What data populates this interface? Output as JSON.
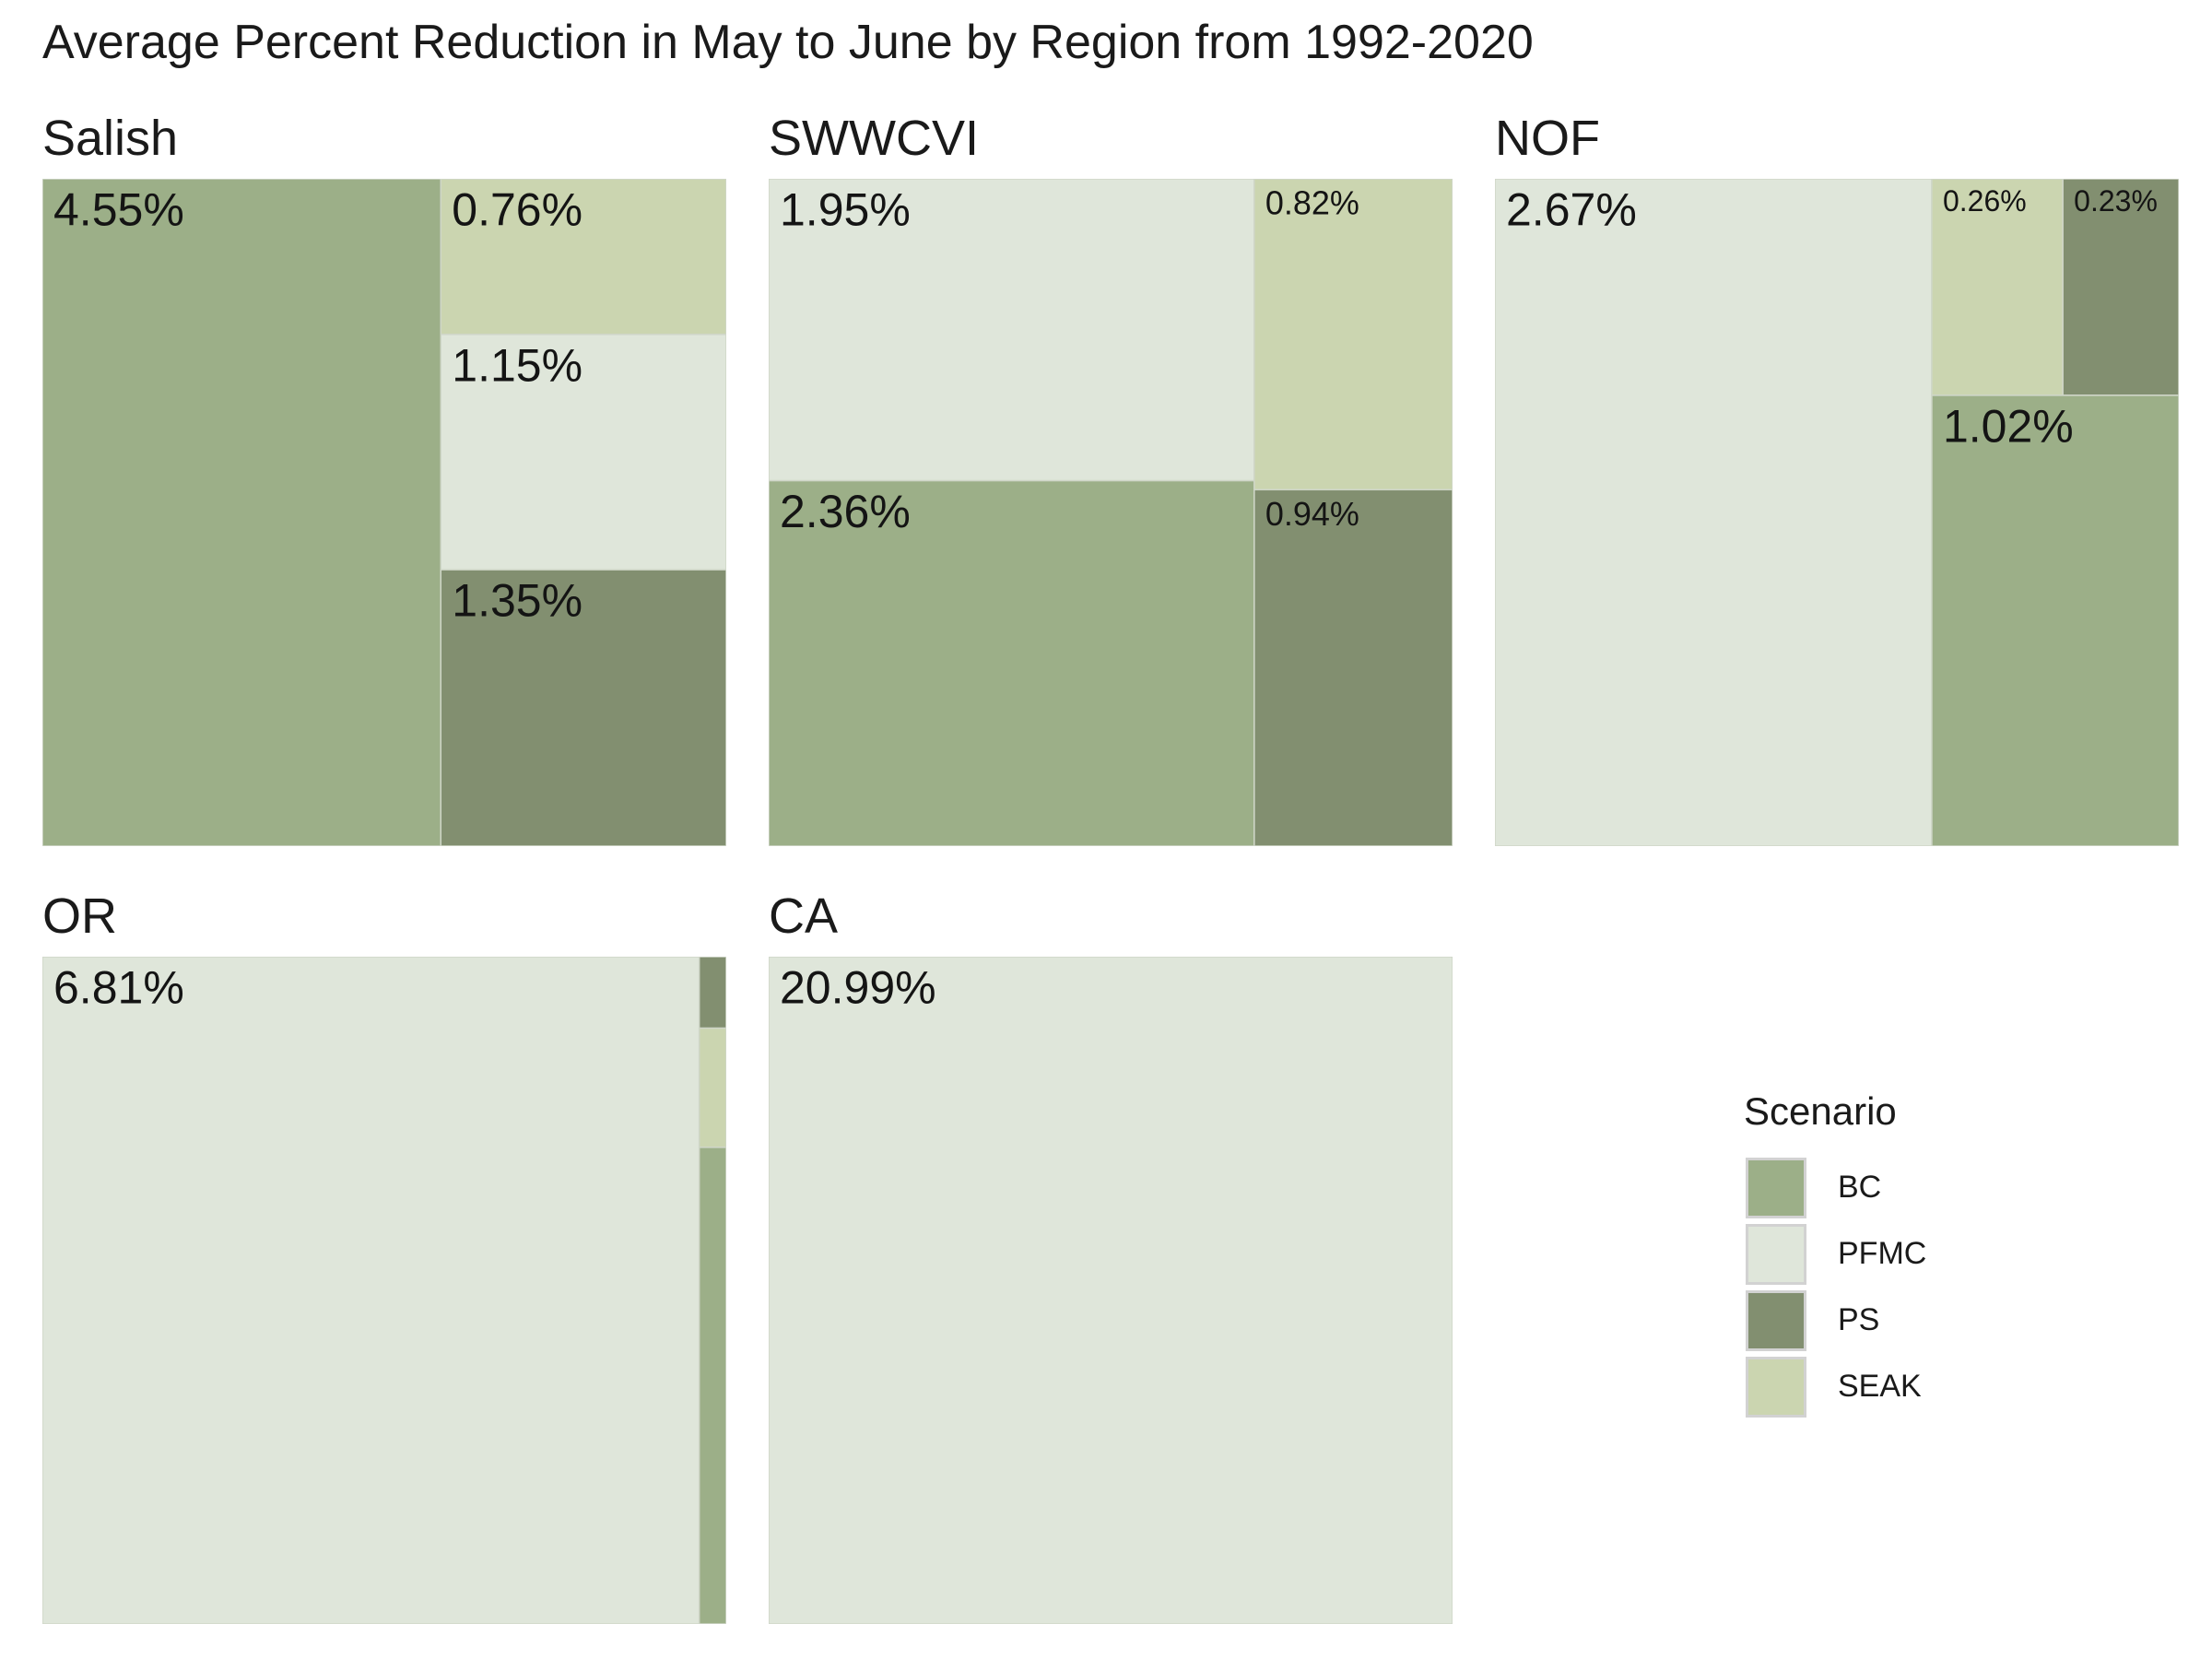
{
  "title": "Average Percent Reduction in May to June by Region from 1992-2020",
  "scenario_colors": {
    "BC": "#9caf88",
    "PFMC": "#dfe6da",
    "PS": "#828f70",
    "SEAK": "#cbd5b0"
  },
  "legend": {
    "title": "Scenario",
    "items": [
      "BC",
      "PFMC",
      "PS",
      "SEAK"
    ]
  },
  "chart_data": {
    "type": "treemap",
    "title": "Average Percent Reduction in May to June by Region from 1992-2020",
    "legend_position": "bottom-right",
    "panels": [
      {
        "region": "Salish",
        "tiles": [
          {
            "scenario": "BC",
            "value": 4.55,
            "label": "4.55%"
          },
          {
            "scenario": "SEAK",
            "value": 0.76,
            "label": "0.76%"
          },
          {
            "scenario": "PFMC",
            "value": 1.15,
            "label": "1.15%"
          },
          {
            "scenario": "PS",
            "value": 1.35,
            "label": "1.35%"
          }
        ]
      },
      {
        "region": "SWWCVI",
        "tiles": [
          {
            "scenario": "PFMC",
            "value": 1.95,
            "label": "1.95%"
          },
          {
            "scenario": "BC",
            "value": 2.36,
            "label": "2.36%"
          },
          {
            "scenario": "SEAK",
            "value": 0.82,
            "label": "0.82%"
          },
          {
            "scenario": "PS",
            "value": 0.94,
            "label": "0.94%"
          }
        ]
      },
      {
        "region": "NOF",
        "tiles": [
          {
            "scenario": "PFMC",
            "value": 2.67,
            "label": "2.67%"
          },
          {
            "scenario": "SEAK",
            "value": 0.26,
            "label": "0.26%"
          },
          {
            "scenario": "PS",
            "value": 0.23,
            "label": "0.23%"
          },
          {
            "scenario": "BC",
            "value": 1.02,
            "label": "1.02%"
          }
        ]
      },
      {
        "region": "OR",
        "tiles": [
          {
            "scenario": "PFMC",
            "value": 6.81,
            "label": "6.81%"
          },
          {
            "scenario": "PS",
            "value": 0.03
          },
          {
            "scenario": "SEAK",
            "value": 0.05
          },
          {
            "scenario": "BC",
            "value": 0.2
          }
        ]
      },
      {
        "region": "CA",
        "tiles": [
          {
            "scenario": "PFMC",
            "value": 20.99,
            "label": "20.99%"
          }
        ]
      }
    ]
  }
}
